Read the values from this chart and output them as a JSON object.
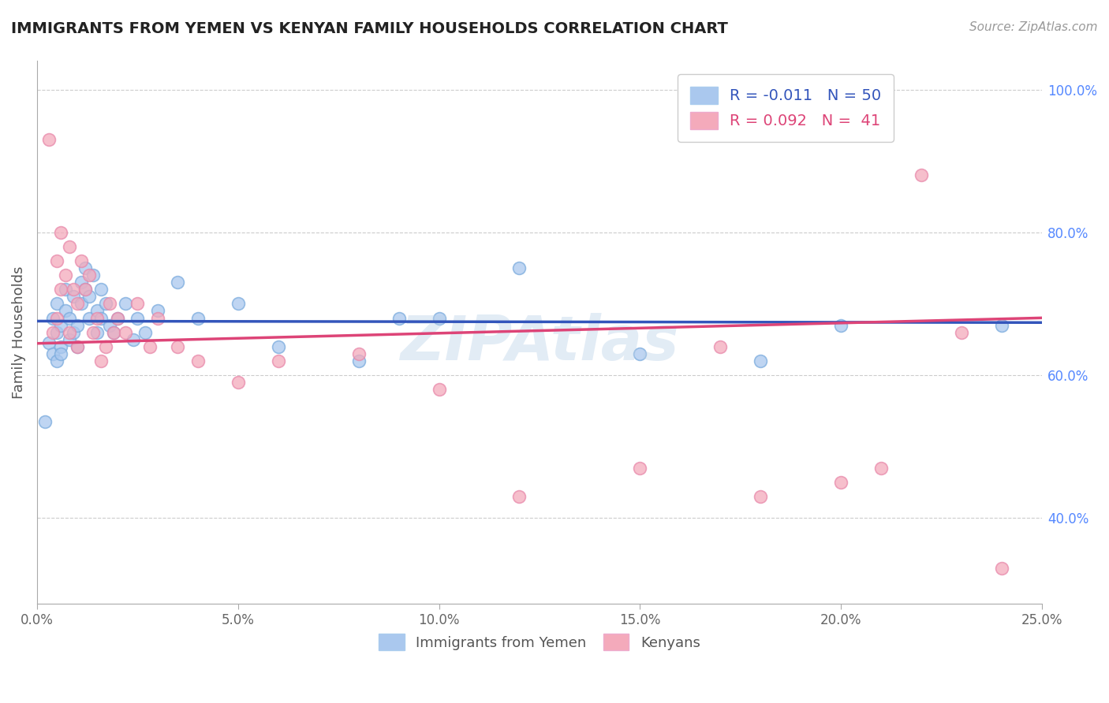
{
  "title": "IMMIGRANTS FROM YEMEN VS KENYAN FAMILY HOUSEHOLDS CORRELATION CHART",
  "source_text": "Source: ZipAtlas.com",
  "ylabel": "Family Households",
  "xlim": [
    0.0,
    0.25
  ],
  "ylim": [
    0.28,
    1.04
  ],
  "xticks": [
    0.0,
    0.05,
    0.1,
    0.15,
    0.2,
    0.25
  ],
  "xticklabels": [
    "0.0%",
    "5.0%",
    "10.0%",
    "15.0%",
    "20.0%",
    "25.0%"
  ],
  "yticks_right": [
    0.4,
    0.6,
    0.8,
    1.0
  ],
  "yticklabels_right": [
    "40.0%",
    "60.0%",
    "80.0%",
    "100.0%"
  ],
  "blue_color": "#aac8ee",
  "pink_color": "#f4aabb",
  "blue_line_color": "#3355bb",
  "pink_line_color": "#dd4477",
  "watermark": "ZIPAtlas",
  "blue_N": 50,
  "pink_N": 41,
  "blue_R": -0.011,
  "pink_R": 0.092,
  "blue_x": [
    0.002,
    0.003,
    0.004,
    0.004,
    0.005,
    0.005,
    0.005,
    0.006,
    0.006,
    0.006,
    0.007,
    0.007,
    0.008,
    0.008,
    0.009,
    0.009,
    0.01,
    0.01,
    0.011,
    0.011,
    0.012,
    0.012,
    0.013,
    0.013,
    0.014,
    0.015,
    0.015,
    0.016,
    0.016,
    0.017,
    0.018,
    0.019,
    0.02,
    0.022,
    0.024,
    0.025,
    0.027,
    0.03,
    0.035,
    0.04,
    0.05,
    0.06,
    0.08,
    0.09,
    0.1,
    0.12,
    0.15,
    0.18,
    0.2,
    0.24
  ],
  "blue_y": [
    0.535,
    0.645,
    0.68,
    0.63,
    0.66,
    0.62,
    0.7,
    0.64,
    0.67,
    0.63,
    0.72,
    0.69,
    0.65,
    0.68,
    0.71,
    0.66,
    0.67,
    0.64,
    0.73,
    0.7,
    0.75,
    0.72,
    0.68,
    0.71,
    0.74,
    0.66,
    0.69,
    0.68,
    0.72,
    0.7,
    0.67,
    0.66,
    0.68,
    0.7,
    0.65,
    0.68,
    0.66,
    0.69,
    0.73,
    0.68,
    0.7,
    0.64,
    0.62,
    0.68,
    0.68,
    0.75,
    0.63,
    0.62,
    0.67,
    0.67
  ],
  "pink_x": [
    0.003,
    0.004,
    0.005,
    0.005,
    0.006,
    0.006,
    0.007,
    0.008,
    0.008,
    0.009,
    0.01,
    0.01,
    0.011,
    0.012,
    0.013,
    0.014,
    0.015,
    0.016,
    0.017,
    0.018,
    0.019,
    0.02,
    0.022,
    0.025,
    0.028,
    0.03,
    0.035,
    0.04,
    0.05,
    0.06,
    0.08,
    0.1,
    0.12,
    0.15,
    0.17,
    0.18,
    0.2,
    0.21,
    0.22,
    0.23,
    0.24
  ],
  "pink_y": [
    0.93,
    0.66,
    0.68,
    0.76,
    0.72,
    0.8,
    0.74,
    0.66,
    0.78,
    0.72,
    0.7,
    0.64,
    0.76,
    0.72,
    0.74,
    0.66,
    0.68,
    0.62,
    0.64,
    0.7,
    0.66,
    0.68,
    0.66,
    0.7,
    0.64,
    0.68,
    0.64,
    0.62,
    0.59,
    0.62,
    0.63,
    0.58,
    0.43,
    0.47,
    0.64,
    0.43,
    0.45,
    0.47,
    0.88,
    0.66,
    0.33
  ],
  "background_color": "#ffffff",
  "grid_color": "#cccccc"
}
